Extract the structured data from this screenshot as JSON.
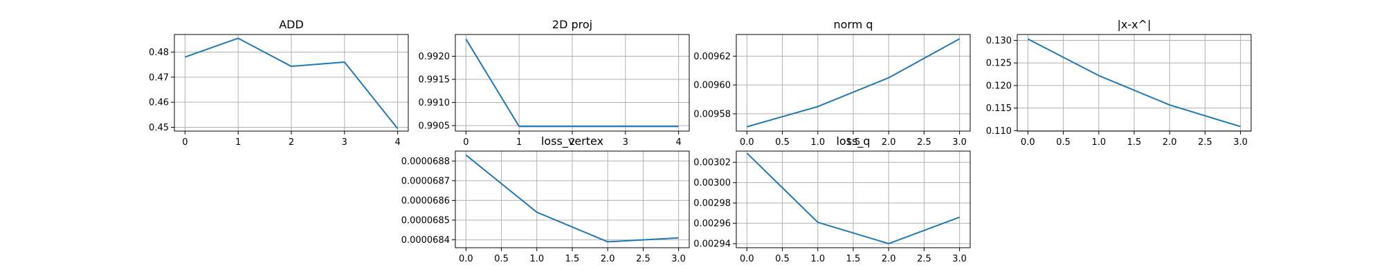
{
  "figure": {
    "line_color": "#1f77b4",
    "grid": true
  },
  "chart_data": [
    {
      "type": "line",
      "title": "ADD",
      "x": [
        0,
        1,
        2,
        3,
        4
      ],
      "values": [
        0.478,
        0.4855,
        0.4743,
        0.476,
        0.4495
      ],
      "xlim": [
        -0.2,
        4.2
      ],
      "ylim": [
        0.4485,
        0.487
      ],
      "xticks": [
        0,
        1,
        2,
        3,
        4
      ],
      "xtick_labels": [
        "0",
        "1",
        "2",
        "3",
        "4"
      ],
      "yticks": [
        0.45,
        0.46,
        0.47,
        0.48
      ],
      "ytick_labels": [
        "0.45",
        "0.46",
        "0.47",
        "0.48"
      ],
      "grid": true
    },
    {
      "type": "line",
      "title": "2D proj",
      "x": [
        0,
        1,
        2,
        3,
        4
      ],
      "values": [
        0.99237,
        0.99048,
        0.99048,
        0.99048,
        0.99048
      ],
      "xlim": [
        -0.2,
        4.2
      ],
      "ylim": [
        0.99038,
        0.99247
      ],
      "xticks": [
        0,
        1,
        2,
        3,
        4
      ],
      "xtick_labels": [
        "0",
        "1",
        "2",
        "3",
        "4"
      ],
      "yticks": [
        0.9905,
        0.991,
        0.9915,
        0.992
      ],
      "ytick_labels": [
        "0.9905",
        "0.9910",
        "0.9915",
        "0.9920"
      ],
      "grid": true
    },
    {
      "type": "line",
      "title": "norm q",
      "x": [
        0,
        1,
        2,
        3
      ],
      "values": [
        0.009571,
        0.009585,
        0.009605,
        0.009632
      ],
      "xlim": [
        -0.15,
        3.15
      ],
      "ylim": [
        0.009568,
        0.009635
      ],
      "xticks": [
        0,
        0.5,
        1,
        1.5,
        2,
        2.5,
        3
      ],
      "xtick_labels": [
        "0.0",
        "0.5",
        "1.0",
        "1.5",
        "2.0",
        "2.5",
        "3.0"
      ],
      "yticks": [
        0.00958,
        0.0096,
        0.00962
      ],
      "ytick_labels": [
        "0.00958",
        "0.00960",
        "0.00962"
      ],
      "grid": true
    },
    {
      "type": "line",
      "title": "|x-x^|",
      "x": [
        0,
        1,
        2,
        3
      ],
      "values": [
        0.1303,
        0.1222,
        0.1157,
        0.1109
      ],
      "xlim": [
        -0.15,
        3.15
      ],
      "ylim": [
        0.1099,
        0.1313
      ],
      "xticks": [
        0,
        0.5,
        1,
        1.5,
        2,
        2.5,
        3
      ],
      "xtick_labels": [
        "0.0",
        "0.5",
        "1.0",
        "1.5",
        "2.0",
        "2.5",
        "3.0"
      ],
      "yticks": [
        0.11,
        0.115,
        0.12,
        0.125,
        0.13
      ],
      "ytick_labels": [
        "0.110",
        "0.115",
        "0.120",
        "0.125",
        "0.130"
      ],
      "grid": true
    },
    {
      "type": "line",
      "title": "loss_vertex",
      "x": [
        0,
        1,
        2,
        3
      ],
      "values": [
        6.883e-05,
        6.854e-05,
        6.839e-05,
        6.841e-05
      ],
      "xlim": [
        -0.15,
        3.15
      ],
      "ylim": [
        6.836e-05,
        6.885e-05
      ],
      "xticks": [
        0,
        0.5,
        1,
        1.5,
        2,
        2.5,
        3
      ],
      "xtick_labels": [
        "0.0",
        "0.5",
        "1.0",
        "1.5",
        "2.0",
        "2.5",
        "3.0"
      ],
      "yticks": [
        6.84e-05,
        6.85e-05,
        6.86e-05,
        6.87e-05,
        6.88e-05
      ],
      "ytick_labels": [
        "0.0000684",
        "0.0000685",
        "0.0000686",
        "0.0000687",
        "0.0000688"
      ],
      "grid": true
    },
    {
      "type": "line",
      "title": "loss_q",
      "x": [
        0,
        1,
        2,
        3
      ],
      "values": [
        0.003029,
        0.002961,
        0.00294,
        0.002966
      ],
      "xlim": [
        -0.15,
        3.15
      ],
      "ylim": [
        0.002936,
        0.003031
      ],
      "xticks": [
        0,
        0.5,
        1,
        1.5,
        2,
        2.5,
        3
      ],
      "xtick_labels": [
        "0.0",
        "0.5",
        "1.0",
        "1.5",
        "2.0",
        "2.5",
        "3.0"
      ],
      "yticks": [
        0.00294,
        0.00296,
        0.00298,
        0.003,
        0.00302
      ],
      "ytick_labels": [
        "0.00294",
        "0.00296",
        "0.00298",
        "0.00300",
        "0.00302"
      ],
      "grid": true
    }
  ]
}
